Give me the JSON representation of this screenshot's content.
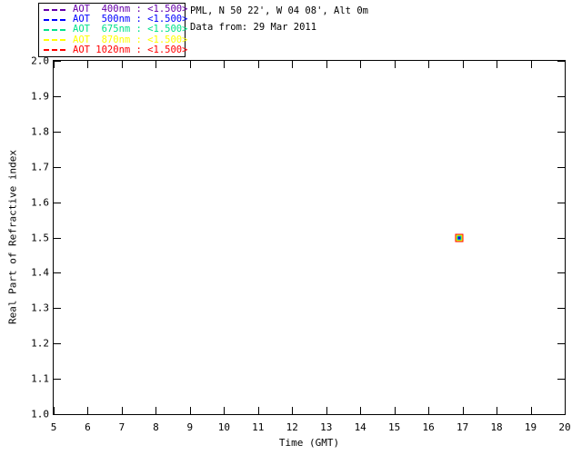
{
  "header": {
    "location_line": "PML, N 50 22', W 04 08', Alt 0m",
    "date_line": "Data from: 29 Mar 2011"
  },
  "legend": {
    "entries": [
      {
        "label": "AOT  400nm : <1.500>",
        "color": "#6600AA"
      },
      {
        "label": "AOT  500nm : <1.500>",
        "color": "#0000FF"
      },
      {
        "label": "AOT  675nm : <1.500>",
        "color": "#00E18C"
      },
      {
        "label": "AOT  870nm : <1.500>",
        "color": "#FFFF00"
      },
      {
        "label": "AOT 1020nm : <1.500>",
        "color": "#FF0000"
      }
    ]
  },
  "chart_data": {
    "type": "scatter",
    "title": "PML, N 50 22', W 04 08', Alt 0m",
    "subtitle": "Data from: 29 Mar 2011",
    "xlabel": "Time (GMT)",
    "ylabel": "Real Part of Refractive index",
    "xlim": [
      5,
      20
    ],
    "ylim": [
      1.0,
      2.0
    ],
    "grid": false,
    "legend_position": "top-left",
    "x_ticks": [
      5,
      6,
      7,
      8,
      9,
      10,
      11,
      12,
      13,
      14,
      15,
      16,
      17,
      18,
      19,
      20
    ],
    "x_tick_labels": [
      "5",
      "6",
      "7",
      "8",
      "9",
      "10",
      "11",
      "12",
      "13",
      "14",
      "15",
      "16",
      "17",
      "18",
      "19",
      "20"
    ],
    "y_ticks": [
      1.0,
      1.1,
      1.2,
      1.3,
      1.4,
      1.5,
      1.6,
      1.7,
      1.8,
      1.9,
      2.0
    ],
    "y_tick_labels": [
      "1.0",
      "1.1",
      "1.2",
      "1.3",
      "1.4",
      "1.5",
      "1.6",
      "1.7",
      "1.8",
      "1.9",
      "2.0"
    ],
    "series": [
      {
        "name": "AOT 400nm",
        "color": "#6600AA",
        "marker": "open-square",
        "x": [
          16.9
        ],
        "y": [
          1.5
        ]
      },
      {
        "name": "AOT 500nm",
        "color": "#0000FF",
        "marker": "open-square",
        "x": [
          16.9
        ],
        "y": [
          1.5
        ]
      },
      {
        "name": "AOT 675nm",
        "color": "#00E18C",
        "marker": "open-square",
        "x": [
          16.9
        ],
        "y": [
          1.5
        ]
      },
      {
        "name": "AOT 870nm",
        "color": "#FFFF00",
        "marker": "open-square",
        "x": [
          16.9
        ],
        "y": [
          1.5
        ]
      },
      {
        "name": "AOT 1020nm",
        "color": "#FF0000",
        "marker": "open-square",
        "x": [
          16.9
        ],
        "y": [
          1.5
        ]
      }
    ]
  }
}
